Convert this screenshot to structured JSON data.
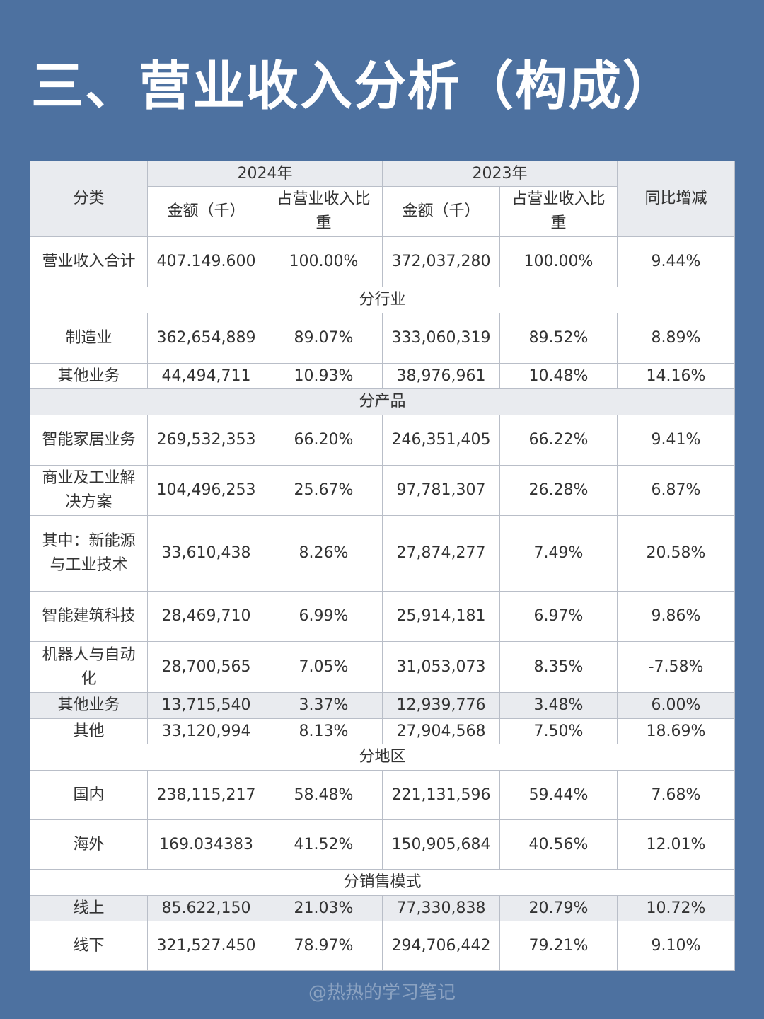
{
  "title": "三、营业收入分析（构成）",
  "table": {
    "header": {
      "category": "分类",
      "years": [
        "2024年",
        "2023年"
      ],
      "amount": "金额（千）",
      "share": "占营业收入比重",
      "change": "同比增减"
    },
    "rows": [
      {
        "cells": [
          "营业收入合计",
          "407.149.600",
          "100.00%",
          "372,037,280",
          "100.00%",
          "9.44%"
        ]
      },
      {
        "section": "分行业"
      },
      {
        "cells": [
          "制造业",
          "362,654,889",
          "89.07%",
          "333,060,319",
          "89.52%",
          "8.89%"
        ]
      },
      {
        "cells": [
          "其他业务",
          "44,494,711",
          "10.93%",
          "38,976,961",
          "10.48%",
          "14.16%"
        ]
      },
      {
        "section": "分产品",
        "shaded": true
      },
      {
        "cells": [
          "智能家居业务",
          "269,532,353",
          "66.20%",
          "246,351,405",
          "66.22%",
          "9.41%"
        ]
      },
      {
        "cells": [
          "商业及工业解决方案",
          "104,496,253",
          "25.67%",
          "97,781,307",
          "26.28%",
          "6.87%"
        ]
      },
      {
        "cells": [
          "其中：新能源与工业技术",
          "33,610,438",
          "8.26%",
          "27,874,277",
          "7.49%",
          "20.58%"
        ]
      },
      {
        "cells": [
          "智能建筑科技",
          "28,469,710",
          "6.99%",
          "25,914,181",
          "6.97%",
          "9.86%"
        ]
      },
      {
        "cells": [
          "机器人与自动化",
          "28,700,565",
          "7.05%",
          "31,053,073",
          "8.35%",
          "-7.58%"
        ]
      },
      {
        "cells": [
          "其他业务",
          "13,715,540",
          "3.37%",
          "12,939,776",
          "3.48%",
          "6.00%"
        ],
        "shaded": true
      },
      {
        "cells": [
          "其他",
          "33,120,994",
          "8.13%",
          "27,904,568",
          "7.50%",
          "18.69%"
        ]
      },
      {
        "section": "分地区"
      },
      {
        "cells": [
          "国内",
          "238,115,217",
          "58.48%",
          "221,131,596",
          "59.44%",
          "7.68%"
        ]
      },
      {
        "cells": [
          "海外",
          "169.034383",
          "41.52%",
          "150,905,684",
          "40.56%",
          "12.01%"
        ]
      },
      {
        "section": "分销售模式"
      },
      {
        "cells": [
          "线上",
          "85.622,150",
          "21.03%",
          "77,330,838",
          "20.79%",
          "10.72%"
        ],
        "shaded": true
      },
      {
        "cells": [
          "线下",
          "321,527.450",
          "78.97%",
          "294,706,442",
          "79.21%",
          "9.10%"
        ]
      }
    ]
  },
  "watermark": "@热热的学习笔记"
}
